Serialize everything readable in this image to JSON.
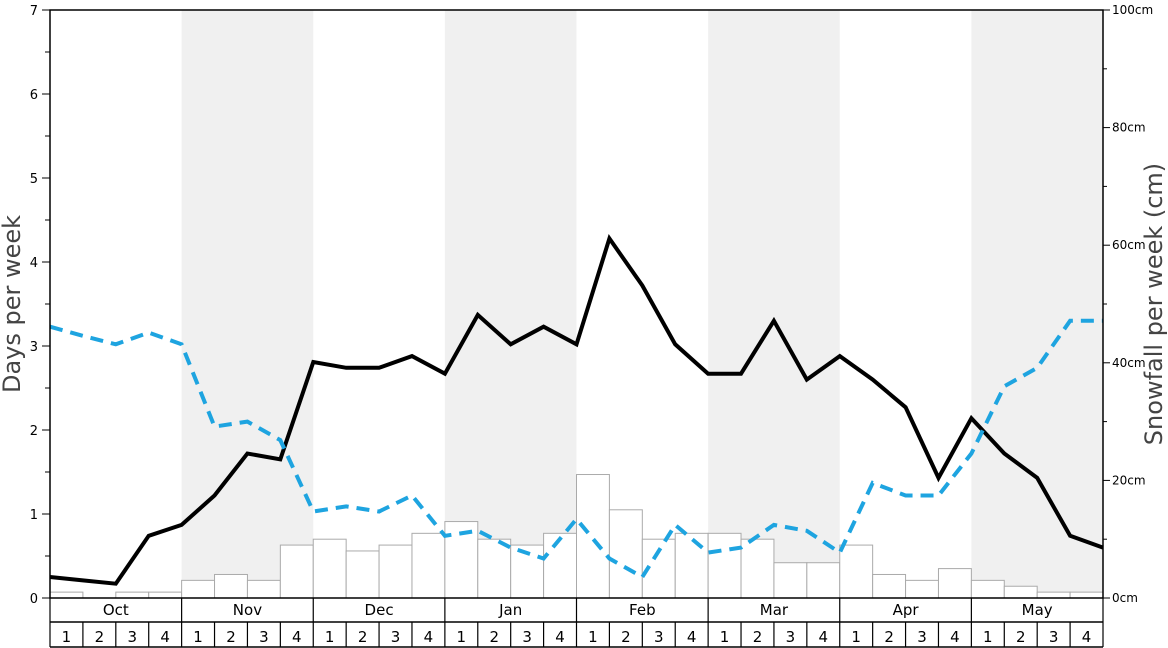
{
  "chart_data": {
    "type": "bar+line",
    "title": "",
    "ylabel_left": "Days per week",
    "ylabel_right": "Snowfall per week (cm)",
    "ylim_left": [
      0,
      7
    ],
    "ylim_right": [
      0,
      100
    ],
    "y_ticks_left": [
      "0",
      "1",
      "2",
      "3",
      "4",
      "5",
      "6",
      "7"
    ],
    "y_ticks_right": [
      "0cm",
      "20cm",
      "40cm",
      "60cm",
      "80cm",
      "100cm"
    ],
    "months": [
      "Oct",
      "Nov",
      "Dec",
      "Jan",
      "Feb",
      "Mar",
      "Apr",
      "May"
    ],
    "weeks": [
      "1",
      "2",
      "3",
      "4"
    ],
    "shaded_months": [
      "Nov",
      "Jan",
      "Mar",
      "May"
    ],
    "snowfall_cm": [
      1,
      0,
      1,
      1,
      3,
      4,
      3,
      9,
      10,
      8,
      9,
      11,
      13,
      10,
      9,
      11,
      21,
      15,
      10,
      11,
      11,
      10,
      6,
      6,
      9,
      4,
      3,
      5,
      3,
      2,
      1,
      1
    ],
    "series": [
      {
        "style": "solid-black",
        "values": [
          0.25,
          0.21,
          0.17,
          0.74,
          0.87,
          1.22,
          1.72,
          1.65,
          2.81,
          2.74,
          2.74,
          2.88,
          2.67,
          3.37,
          3.02,
          3.23,
          3.02,
          4.28,
          3.72,
          3.02,
          2.67,
          2.67,
          3.3,
          2.6,
          2.88,
          2.6,
          2.27,
          1.43,
          2.14,
          1.72,
          1.43,
          0.74,
          0.6
        ]
      },
      {
        "style": "dashed-blue",
        "values": [
          3.23,
          3.12,
          3.02,
          3.16,
          3.02,
          2.04,
          2.1,
          1.88,
          1.03,
          1.09,
          1.03,
          1.22,
          0.74,
          0.8,
          0.6,
          0.47,
          0.94,
          0.47,
          0.25,
          0.87,
          0.54,
          0.6,
          0.87,
          0.8,
          0.54,
          1.37,
          1.22,
          1.22,
          1.72,
          2.52,
          2.74,
          3.3,
          3.3
        ]
      }
    ]
  }
}
